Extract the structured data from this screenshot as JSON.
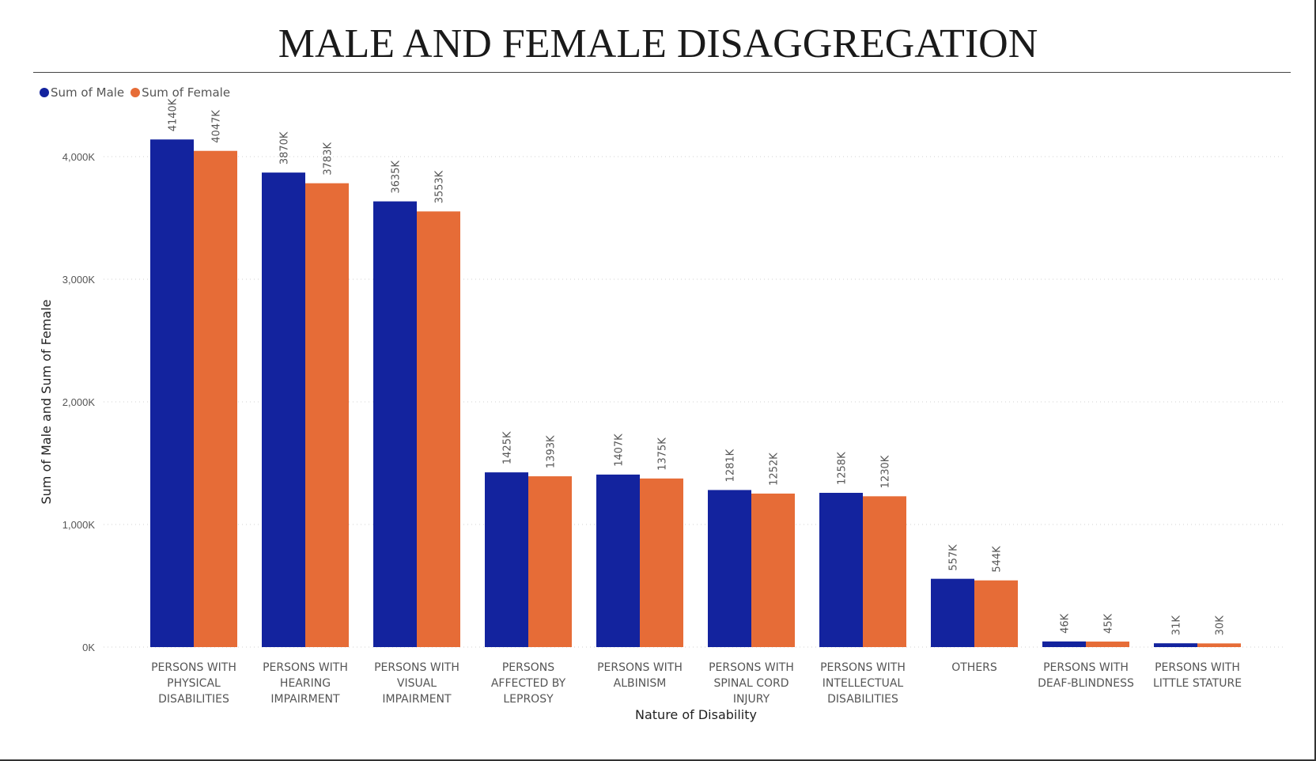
{
  "chart_data": {
    "type": "bar",
    "title": "MALE AND FEMALE DISAGGREGATION",
    "xlabel": "Nature of Disability",
    "ylabel": "Sum of Male and Sum of Female",
    "ylim": [
      0,
      4200
    ],
    "yticks": [
      "0K",
      "1,000K",
      "2,000K",
      "3,000K",
      "4,000K"
    ],
    "grid": true,
    "legend_position": "top-left",
    "categories": [
      [
        "PERSONS WITH",
        "PHYSICAL",
        "DISABILITIES"
      ],
      [
        "PERSONS WITH",
        "HEARING",
        "IMPAIRMENT"
      ],
      [
        "PERSONS WITH",
        "VISUAL",
        "IMPAIRMENT"
      ],
      [
        "PERSONS",
        "AFFECTED BY",
        "LEPROSY"
      ],
      [
        "PERSONS WITH",
        "ALBINISM"
      ],
      [
        "PERSONS WITH",
        "SPINAL CORD",
        "INJURY"
      ],
      [
        "PERSONS WITH",
        "INTELLECTUAL",
        "DISABILITIES"
      ],
      [
        "OTHERS"
      ],
      [
        "PERSONS WITH",
        "DEAF-BLINDNESS"
      ],
      [
        "PERSONS WITH",
        "LITTLE STATURE"
      ]
    ],
    "series": [
      {
        "name": "Sum of Male",
        "color": "#13239E",
        "values": [
          4140,
          3870,
          3635,
          1425,
          1407,
          1281,
          1258,
          557,
          46,
          31
        ],
        "labels": [
          "4140K",
          "3870K",
          "3635K",
          "1425K",
          "1407K",
          "1281K",
          "1258K",
          "557K",
          "46K",
          "31K"
        ]
      },
      {
        "name": "Sum of Female",
        "color": "#E66C37",
        "values": [
          4047,
          3783,
          3553,
          1393,
          1375,
          1252,
          1230,
          544,
          45,
          30
        ],
        "labels": [
          "4047K",
          "3783K",
          "3553K",
          "1393K",
          "1375K",
          "1252K",
          "1230K",
          "544K",
          "45K",
          "30K"
        ]
      }
    ]
  }
}
